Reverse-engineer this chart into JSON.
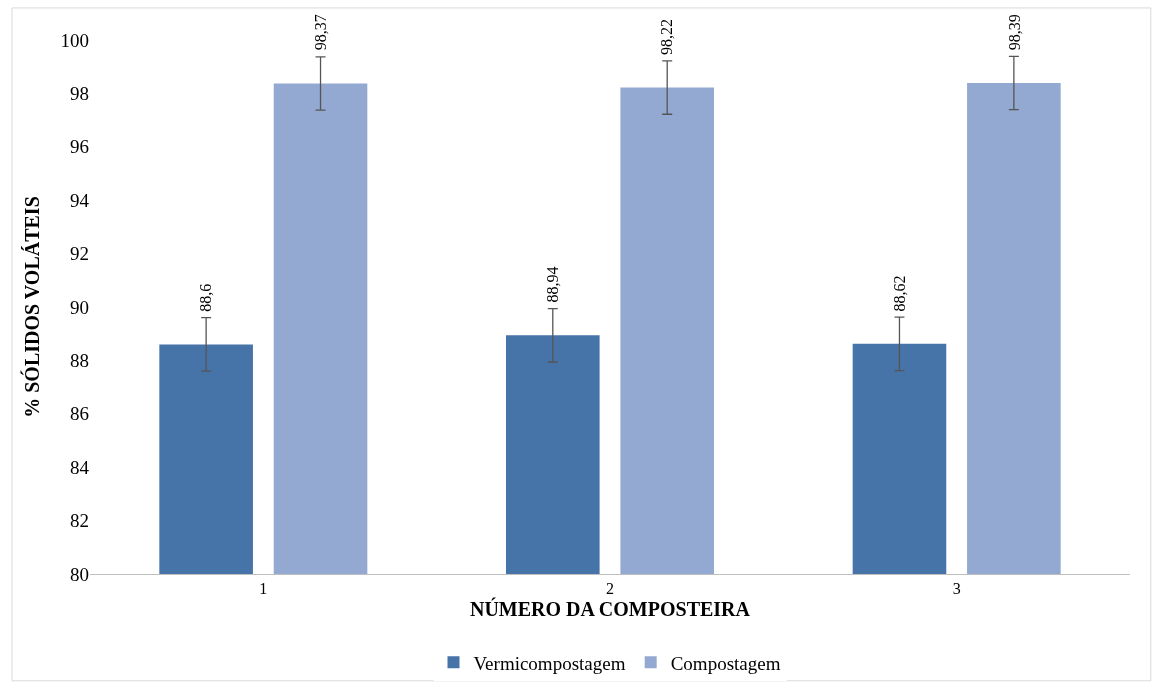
{
  "chart_data": {
    "type": "bar",
    "xlabel": "NÚMERO DA COMPOSTEIRA",
    "ylabel": "% SÓLIDOS VOLÁTEIS",
    "categories": [
      "1",
      "2",
      "3"
    ],
    "series": [
      {
        "name": "Vermicompostagem",
        "color": "#4673a8",
        "values": [
          88.6,
          88.94,
          88.62
        ],
        "errors": [
          1,
          1,
          1
        ],
        "value_labels": [
          "88,6",
          "88,94",
          "88,62"
        ]
      },
      {
        "name": "Compostagem",
        "color": "#93a9d1",
        "values": [
          98.37,
          98.22,
          98.39
        ],
        "errors": [
          1,
          1,
          1
        ],
        "value_labels": [
          "98,37",
          "98,22",
          "98,39"
        ]
      }
    ],
    "ylim": [
      80,
      100
    ],
    "yticks": [
      80,
      82,
      84,
      86,
      88,
      90,
      92,
      94,
      96,
      98,
      100
    ],
    "legend": "bottom"
  }
}
